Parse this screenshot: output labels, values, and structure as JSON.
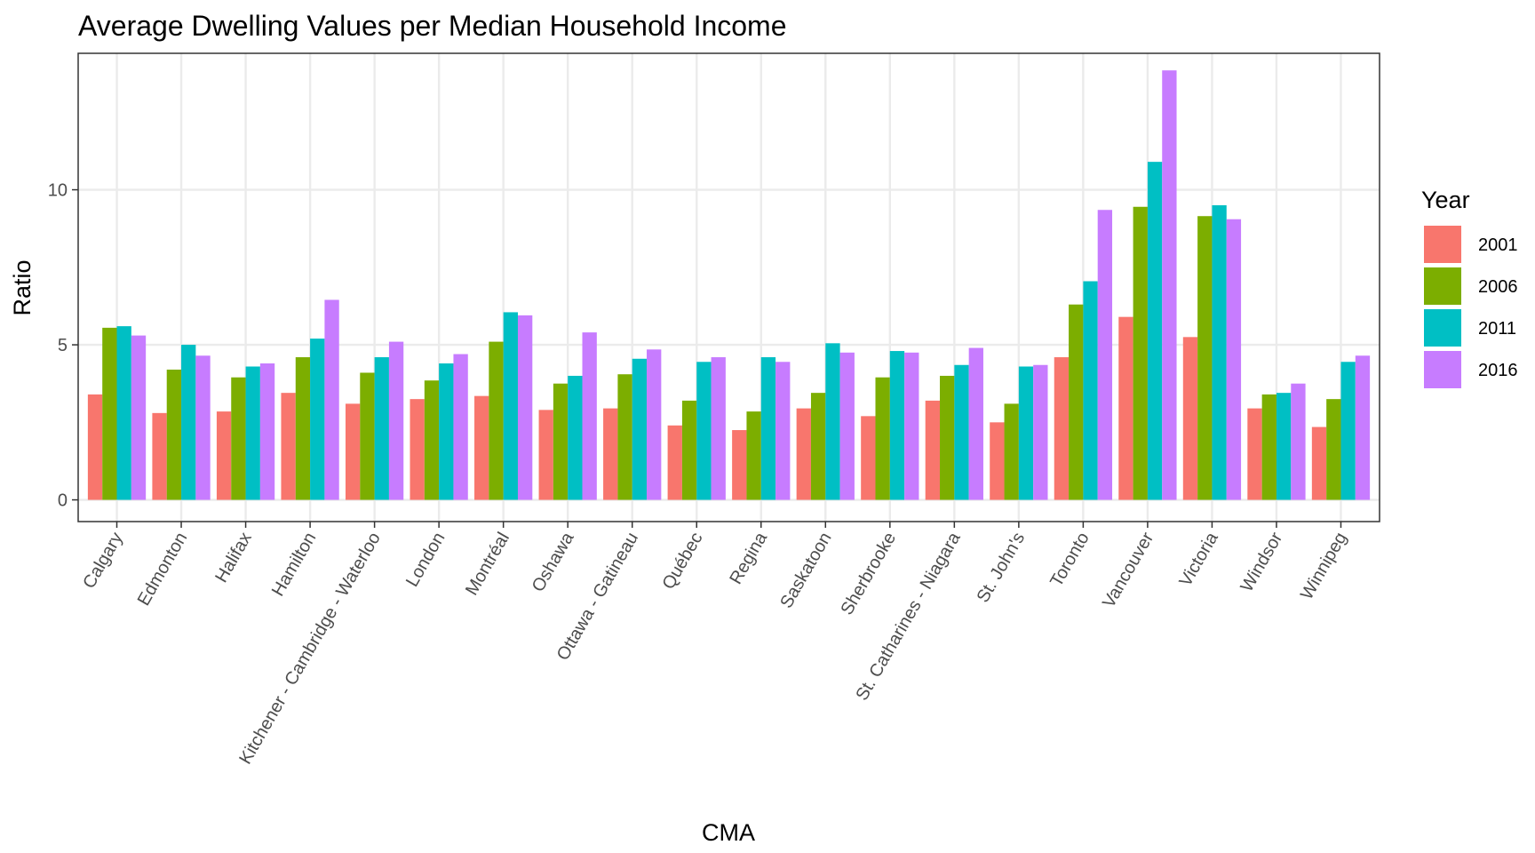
{
  "chart_data": {
    "type": "bar",
    "title": "Average Dwelling Values per Median Household Income",
    "xlabel": "CMA",
    "ylabel": "Ratio",
    "ylim": [
      -0.7,
      14.4
    ],
    "yticks": [
      0,
      5,
      10
    ],
    "grid": true,
    "legend": {
      "title": "Year",
      "placement": "right"
    },
    "categories": [
      "Calgary",
      "Edmonton",
      "Halifax",
      "Hamilton",
      "Kitchener - Cambridge - Waterloo",
      "London",
      "Montréal",
      "Oshawa",
      "Ottawa - Gatineau",
      "Québec",
      "Regina",
      "Saskatoon",
      "Sherbrooke",
      "St. Catharines - Niagara",
      "St. John's",
      "Toronto",
      "Vancouver",
      "Victoria",
      "Windsor",
      "Winnipeg"
    ],
    "series": [
      {
        "name": "2001",
        "color": "#F8766D",
        "values": [
          3.4,
          2.8,
          2.85,
          3.45,
          3.1,
          3.25,
          3.35,
          2.9,
          2.95,
          2.4,
          2.25,
          2.95,
          2.7,
          3.2,
          2.5,
          4.6,
          5.9,
          5.25,
          2.95,
          2.35
        ]
      },
      {
        "name": "2006",
        "color": "#7CAE00",
        "values": [
          5.55,
          4.2,
          3.95,
          4.6,
          4.1,
          3.85,
          5.1,
          3.75,
          4.05,
          3.2,
          2.85,
          3.45,
          3.95,
          4.0,
          3.1,
          6.3,
          9.45,
          9.15,
          3.4,
          3.25
        ]
      },
      {
        "name": "2011",
        "color": "#00BFC4",
        "values": [
          5.6,
          5.0,
          4.3,
          5.2,
          4.6,
          4.4,
          6.05,
          4.0,
          4.55,
          4.45,
          4.6,
          5.05,
          4.8,
          4.35,
          4.3,
          7.05,
          10.9,
          9.5,
          3.45,
          4.45
        ]
      },
      {
        "name": "2016",
        "color": "#C77CFF",
        "values": [
          5.3,
          4.65,
          4.4,
          6.45,
          5.1,
          4.7,
          5.95,
          5.4,
          4.85,
          4.6,
          4.45,
          4.75,
          4.75,
          4.9,
          4.35,
          9.35,
          13.85,
          9.05,
          3.75,
          4.65
        ]
      }
    ]
  }
}
